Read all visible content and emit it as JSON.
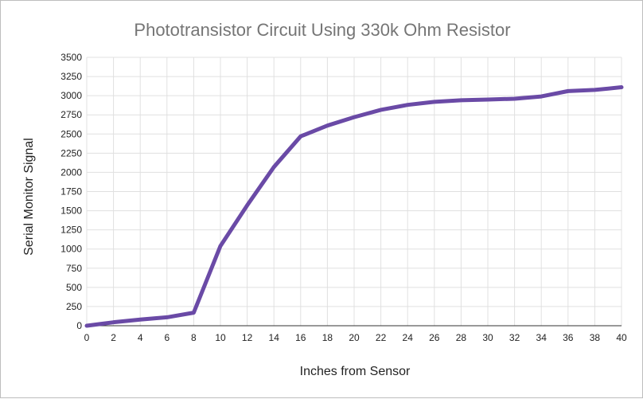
{
  "chart_data": {
    "type": "line",
    "title": "Phototransistor Circuit Using 330k Ohm Resistor",
    "xlabel": "Inches from Sensor",
    "ylabel": "Serial Monitor Signal",
    "xlim": [
      0,
      40
    ],
    "ylim": [
      0,
      3500
    ],
    "x_ticks": [
      0,
      2,
      4,
      6,
      8,
      10,
      12,
      14,
      16,
      18,
      20,
      22,
      24,
      26,
      28,
      30,
      32,
      34,
      36,
      38,
      40
    ],
    "y_ticks": [
      0,
      250,
      500,
      750,
      1000,
      1250,
      1500,
      1750,
      2000,
      2250,
      2500,
      2750,
      3000,
      3250,
      3500
    ],
    "grid": true,
    "legend": "none",
    "series": [
      {
        "color": "#6a4aa6",
        "x": [
          0,
          2,
          4,
          6,
          8,
          10,
          12,
          14,
          16,
          18,
          20,
          22,
          24,
          26,
          28,
          30,
          32,
          34,
          36,
          38,
          40
        ],
        "y": [
          0,
          45,
          80,
          110,
          170,
          1040,
          1570,
          2070,
          2470,
          2610,
          2720,
          2815,
          2880,
          2920,
          2940,
          2950,
          2960,
          2990,
          3060,
          3075,
          3110
        ]
      }
    ]
  }
}
